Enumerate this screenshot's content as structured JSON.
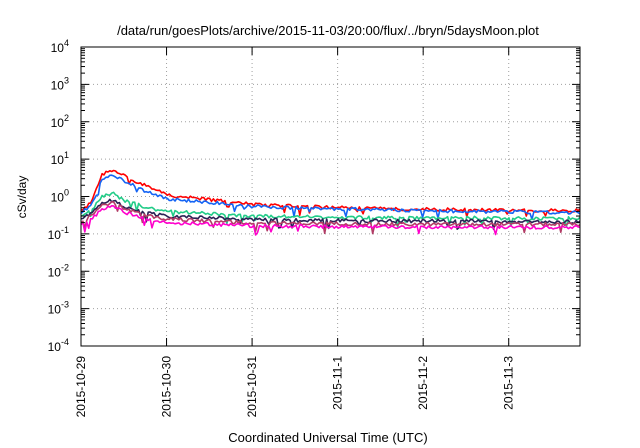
{
  "chart_data": {
    "type": "line",
    "title": "/data/run/goesPlots/archive/2015-11-03/20:00/flux/../bryn/5daysMoon.plot",
    "xlabel": "Coordinated Universal Time (UTC)",
    "ylabel": "cSv/day",
    "x_range": [
      "2015-10-29",
      "2015-11-03T20:00"
    ],
    "x_ticks": [
      "2015-10-29",
      "2015-10-30",
      "2015-10-31",
      "2015-11-1",
      "2015-11-2",
      "2015-11-3"
    ],
    "y_scale": "log",
    "ylim": [
      0.0001,
      10000
    ],
    "y_ticks": [
      {
        "base": "10",
        "exp": "4"
      },
      {
        "base": "10",
        "exp": "3"
      },
      {
        "base": "10",
        "exp": "2"
      },
      {
        "base": "10",
        "exp": "1"
      },
      {
        "base": "10",
        "exp": "0"
      },
      {
        "base": "10",
        "exp": "-1"
      },
      {
        "base": "10",
        "exp": "-2"
      },
      {
        "base": "10",
        "exp": "-3"
      },
      {
        "base": "10",
        "exp": "-4"
      }
    ],
    "grid": true,
    "legend": "none",
    "series": [
      {
        "color": "#ff0000",
        "x": [
          "2015-10-29T00:00",
          "2015-10-29T03:00",
          "2015-10-29T06:00",
          "2015-10-29T09:00",
          "2015-10-29T12:00",
          "2015-10-29T18:00",
          "2015-10-30T00:00",
          "2015-10-30T12:00",
          "2015-10-31T00:00",
          "2015-10-31T12:00",
          "2015-11-01T00:00",
          "2015-11-01T12:00",
          "2015-11-02T00:00",
          "2015-11-02T12:00",
          "2015-11-03T00:00",
          "2015-11-03T12:00",
          "2015-11-03T20:00"
        ],
        "y": [
          0.42,
          0.7,
          4.0,
          5.2,
          3.6,
          2.0,
          1.1,
          0.82,
          0.62,
          0.55,
          0.5,
          0.47,
          0.46,
          0.44,
          0.43,
          0.42,
          0.42
        ]
      },
      {
        "color": "#1464f4",
        "x": [
          "2015-10-29T00:00",
          "2015-10-29T03:00",
          "2015-10-29T06:00",
          "2015-10-29T09:00",
          "2015-10-29T12:00",
          "2015-10-29T18:00",
          "2015-10-30T00:00",
          "2015-10-30T12:00",
          "2015-10-31T00:00",
          "2015-10-31T12:00",
          "2015-11-01T00:00",
          "2015-11-01T12:00",
          "2015-11-02T00:00",
          "2015-11-02T12:00",
          "2015-11-03T00:00",
          "2015-11-03T12:00",
          "2015-11-03T20:00"
        ],
        "y": [
          0.38,
          0.6,
          2.9,
          3.6,
          2.6,
          1.4,
          0.85,
          0.7,
          0.55,
          0.5,
          0.46,
          0.44,
          0.42,
          0.4,
          0.39,
          0.38,
          0.38
        ]
      },
      {
        "color": "#22cc88",
        "x": [
          "2015-10-29T00:00",
          "2015-10-29T03:00",
          "2015-10-29T06:00",
          "2015-10-29T09:00",
          "2015-10-29T12:00",
          "2015-10-29T18:00",
          "2015-10-30T00:00",
          "2015-10-30T12:00",
          "2015-10-31T00:00",
          "2015-10-31T12:00",
          "2015-11-01T00:00",
          "2015-11-01T12:00",
          "2015-11-02T00:00",
          "2015-11-02T12:00",
          "2015-11-03T00:00",
          "2015-11-03T12:00",
          "2015-11-03T20:00"
        ],
        "y": [
          0.3,
          0.45,
          1.0,
          1.2,
          0.8,
          0.52,
          0.4,
          0.35,
          0.3,
          0.29,
          0.28,
          0.27,
          0.27,
          0.27,
          0.26,
          0.26,
          0.26
        ]
      },
      {
        "color": "#2a2255",
        "x": [
          "2015-10-29T00:00",
          "2015-10-29T03:00",
          "2015-10-29T06:00",
          "2015-10-29T09:00",
          "2015-10-29T12:00",
          "2015-10-29T18:00",
          "2015-10-30T00:00",
          "2015-10-30T12:00",
          "2015-10-31T00:00",
          "2015-10-31T12:00",
          "2015-11-01T00:00",
          "2015-11-01T12:00",
          "2015-11-02T00:00",
          "2015-11-02T12:00",
          "2015-11-03T00:00",
          "2015-11-03T12:00",
          "2015-11-03T20:00"
        ],
        "y": [
          0.24,
          0.35,
          0.7,
          0.8,
          0.55,
          0.38,
          0.3,
          0.27,
          0.24,
          0.23,
          0.23,
          0.22,
          0.22,
          0.22,
          0.21,
          0.21,
          0.21
        ]
      },
      {
        "color": "#b23c66",
        "x": [
          "2015-10-29T00:00",
          "2015-10-29T03:00",
          "2015-10-29T06:00",
          "2015-10-29T09:00",
          "2015-10-29T12:00",
          "2015-10-29T18:00",
          "2015-10-30T00:00",
          "2015-10-30T12:00",
          "2015-10-31T00:00",
          "2015-10-31T12:00",
          "2015-11-01T00:00",
          "2015-11-01T12:00",
          "2015-11-02T00:00",
          "2015-11-02T12:00",
          "2015-11-03T00:00",
          "2015-11-03T12:00",
          "2015-11-03T20:00"
        ],
        "y": [
          0.21,
          0.3,
          0.6,
          0.68,
          0.48,
          0.32,
          0.25,
          0.22,
          0.2,
          0.19,
          0.19,
          0.18,
          0.18,
          0.18,
          0.18,
          0.18,
          0.18
        ]
      },
      {
        "color": "#ff00cc",
        "x": [
          "2015-10-29T00:00",
          "2015-10-29T03:00",
          "2015-10-29T06:00",
          "2015-10-29T09:00",
          "2015-10-29T12:00",
          "2015-10-29T18:00",
          "2015-10-30T00:00",
          "2015-10-30T12:00",
          "2015-10-31T00:00",
          "2015-10-31T12:00",
          "2015-11-01T00:00",
          "2015-11-01T12:00",
          "2015-11-02T00:00",
          "2015-11-02T12:00",
          "2015-11-03T00:00",
          "2015-11-03T12:00",
          "2015-11-03T20:00"
        ],
        "y": [
          0.18,
          0.25,
          0.48,
          0.55,
          0.38,
          0.26,
          0.2,
          0.18,
          0.165,
          0.16,
          0.155,
          0.155,
          0.15,
          0.15,
          0.15,
          0.15,
          0.15
        ]
      }
    ]
  }
}
